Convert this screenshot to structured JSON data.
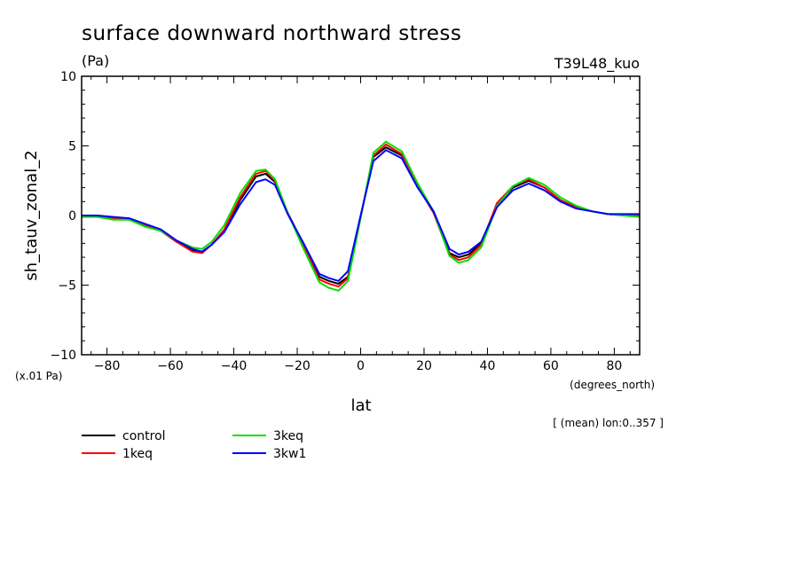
{
  "chart_data": {
    "type": "line",
    "title": "surface downward northward stress",
    "units": "(Pa)",
    "experiment": "T39L48_kuo",
    "ylabel": "sh_tauv_zonal_2",
    "xlabel": "lat",
    "xunits": "(degrees_north)",
    "yscale_note": "(x.01 Pa)",
    "footnote": "[ (mean) lon:0..357 ]",
    "xlim": [
      -88,
      88
    ],
    "ylim": [
      -10,
      10
    ],
    "xticks": [
      -80,
      -60,
      -40,
      -20,
      0,
      20,
      40,
      60,
      80
    ],
    "yticks": [
      -10,
      -5,
      0,
      5,
      10
    ],
    "xtick_labels": [
      "-80",
      "-60",
      "-40",
      "-20",
      "0",
      "20",
      "40",
      "60",
      "80"
    ],
    "ytick_labels": [
      "-10",
      "-5",
      "0",
      "5",
      "10"
    ],
    "x": [
      -88,
      -83,
      -78,
      -73,
      -68,
      -63,
      -58,
      -53,
      -50,
      -47,
      -43,
      -38,
      -33,
      -30,
      -27,
      -23,
      -18,
      -13,
      -10,
      -7,
      -4,
      0,
      4,
      8,
      13,
      18,
      23,
      28,
      31,
      34,
      38,
      43,
      48,
      53,
      58,
      63,
      68,
      73,
      78,
      83,
      88
    ],
    "series": [
      {
        "name": "control",
        "color": "#000000",
        "values": [
          -0.1,
          -0.05,
          -0.2,
          -0.3,
          -0.7,
          -1.1,
          -1.9,
          -2.5,
          -2.6,
          -2.1,
          -1.1,
          1.1,
          2.8,
          3.0,
          2.4,
          0.2,
          -2.1,
          -4.4,
          -4.7,
          -4.9,
          -4.4,
          -0.1,
          4.2,
          4.9,
          4.3,
          2.1,
          0.2,
          -2.7,
          -3.0,
          -2.8,
          -2.0,
          0.8,
          2.0,
          2.5,
          2.0,
          1.1,
          0.6,
          0.3,
          0.1,
          0.0,
          0.0
        ]
      },
      {
        "name": "1keq",
        "color": "#ff0000",
        "values": [
          -0.1,
          -0.05,
          -0.2,
          -0.3,
          -0.7,
          -1.1,
          -1.9,
          -2.6,
          -2.7,
          -2.1,
          -1.0,
          1.3,
          3.0,
          3.2,
          2.5,
          0.2,
          -2.2,
          -4.6,
          -4.9,
          -5.1,
          -4.5,
          -0.1,
          4.3,
          5.1,
          4.4,
          2.1,
          0.2,
          -2.8,
          -3.2,
          -3.0,
          -2.1,
          0.9,
          2.1,
          2.6,
          2.0,
          1.1,
          0.6,
          0.3,
          0.1,
          0.0,
          0.0
        ]
      },
      {
        "name": "3keq",
        "color": "#00e000",
        "values": [
          -0.1,
          -0.1,
          -0.3,
          -0.3,
          -0.8,
          -1.1,
          -1.8,
          -2.3,
          -2.4,
          -1.9,
          -0.7,
          1.6,
          3.2,
          3.3,
          2.6,
          0.2,
          -2.4,
          -4.8,
          -5.2,
          -5.4,
          -4.7,
          -0.2,
          4.5,
          5.3,
          4.6,
          2.3,
          0.3,
          -2.9,
          -3.4,
          -3.2,
          -2.3,
          0.7,
          2.1,
          2.7,
          2.2,
          1.3,
          0.7,
          0.3,
          0.1,
          0.0,
          -0.1
        ]
      },
      {
        "name": "3kw1",
        "color": "#0000ff",
        "values": [
          0.0,
          0.0,
          -0.1,
          -0.2,
          -0.6,
          -1.0,
          -1.8,
          -2.4,
          -2.6,
          -2.1,
          -1.2,
          0.8,
          2.4,
          2.6,
          2.2,
          0.1,
          -2.0,
          -4.2,
          -4.5,
          -4.7,
          -4.0,
          0.0,
          3.9,
          4.7,
          4.1,
          2.0,
          0.3,
          -2.4,
          -2.8,
          -2.6,
          -1.9,
          0.6,
          1.8,
          2.3,
          1.8,
          1.0,
          0.5,
          0.3,
          0.1,
          0.1,
          0.1
        ]
      }
    ],
    "grid": false,
    "legend_position": "bottom-left"
  }
}
